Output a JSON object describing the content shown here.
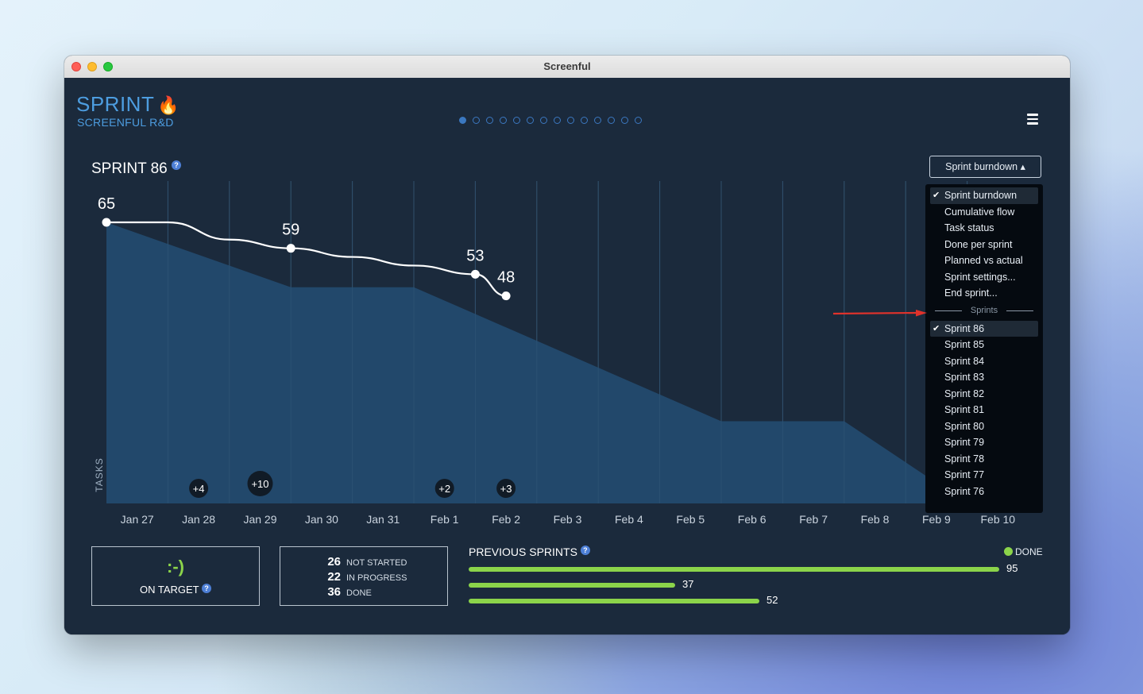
{
  "window": {
    "title": "Screenful"
  },
  "header": {
    "title": "SPRINT",
    "subtitle": "SCREENFUL R&D",
    "page_dots": {
      "count": 14,
      "active": 0
    },
    "menu_icon": "hamburger-icon"
  },
  "sprint_title": "SPRINT 86",
  "help_glyph": "?",
  "dropdown": {
    "label": "Sprint burndown ▴",
    "views": [
      {
        "label": "Sprint burndown",
        "checked": true
      },
      {
        "label": "Cumulative flow",
        "checked": false
      },
      {
        "label": "Task status",
        "checked": false
      },
      {
        "label": "Done per sprint",
        "checked": false
      },
      {
        "label": "Planned vs actual",
        "checked": false
      },
      {
        "label": "Sprint settings...",
        "checked": false
      },
      {
        "label": "End sprint...",
        "checked": false
      }
    ],
    "separator": "Sprints",
    "sprints": [
      {
        "label": "Sprint 86",
        "checked": true
      },
      {
        "label": "Sprint 85",
        "checked": false
      },
      {
        "label": "Sprint 84",
        "checked": false
      },
      {
        "label": "Sprint 83",
        "checked": false
      },
      {
        "label": "Sprint 82",
        "checked": false
      },
      {
        "label": "Sprint 81",
        "checked": false
      },
      {
        "label": "Sprint 80",
        "checked": false
      },
      {
        "label": "Sprint 79",
        "checked": false
      },
      {
        "label": "Sprint 78",
        "checked": false
      },
      {
        "label": "Sprint 77",
        "checked": false
      },
      {
        "label": "Sprint 76",
        "checked": false
      }
    ]
  },
  "chart_data": {
    "type": "line",
    "ylabel": "TASKS",
    "categories": [
      "Jan 27",
      "Jan 28",
      "Jan 29",
      "Jan 30",
      "Jan 31",
      "Feb 1",
      "Feb 2",
      "Feb 3",
      "Feb 4",
      "Feb 5",
      "Feb 6",
      "Feb 7",
      "Feb 8",
      "Feb 9",
      "Feb 10"
    ],
    "remaining_line": [
      {
        "x": 0,
        "y": 65,
        "label": "65"
      },
      {
        "x": 1,
        "y": 65,
        "label": ""
      },
      {
        "x": 2,
        "y": 61,
        "label": ""
      },
      {
        "x": 3,
        "y": 59,
        "label": "59"
      },
      {
        "x": 4,
        "y": 57,
        "label": ""
      },
      {
        "x": 5,
        "y": 55,
        "label": ""
      },
      {
        "x": 6,
        "y": 53,
        "label": "53"
      },
      {
        "x": 6.5,
        "y": 48,
        "label": "48"
      }
    ],
    "ideal_area": [
      {
        "x": 0,
        "y": 65
      },
      {
        "x": 3,
        "y": 50
      },
      {
        "x": 5,
        "y": 50
      },
      {
        "x": 10,
        "y": 19
      },
      {
        "x": 12,
        "y": 19
      },
      {
        "x": 14,
        "y": 0
      }
    ],
    "scope_changes": [
      {
        "x": 1.5,
        "label": "+4"
      },
      {
        "x": 2.5,
        "label": "+10"
      },
      {
        "x": 5.5,
        "label": "+2"
      },
      {
        "x": 6.5,
        "label": "+3"
      }
    ],
    "ylim": [
      0,
      70
    ],
    "grid": true
  },
  "summary": {
    "status_glyph": ":-)",
    "status_label": "ON TARGET",
    "stats": [
      {
        "value": "26",
        "label": "NOT STARTED"
      },
      {
        "value": "22",
        "label": "IN PROGRESS"
      },
      {
        "value": "36",
        "label": "DONE"
      }
    ]
  },
  "previous_sprints": {
    "title": "PREVIOUS SPRINTS",
    "legend": "DONE",
    "values": [
      95,
      37,
      52
    ],
    "max": 95,
    "color": "#8bd44a"
  }
}
